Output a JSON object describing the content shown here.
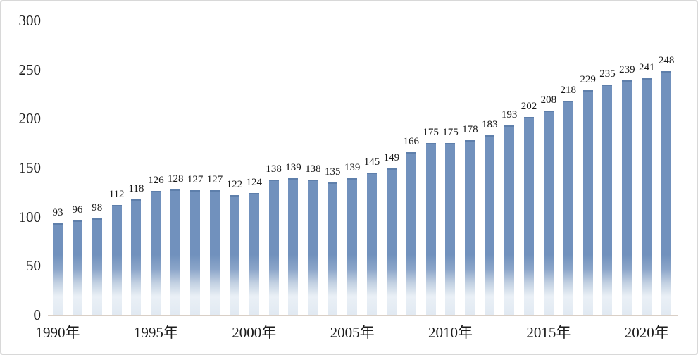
{
  "chart_data": {
    "type": "bar",
    "title": "",
    "xlabel": "",
    "ylabel": "",
    "categories": [
      1990,
      1991,
      1992,
      1993,
      1994,
      1995,
      1996,
      1997,
      1998,
      1999,
      2000,
      2001,
      2002,
      2003,
      2004,
      2005,
      2006,
      2007,
      2008,
      2009,
      2010,
      2011,
      2012,
      2013,
      2014,
      2015,
      2016,
      2017,
      2018,
      2019,
      2020,
      2021
    ],
    "values": [
      93,
      96,
      98,
      112,
      118,
      126,
      128,
      127,
      127,
      122,
      124,
      138,
      139,
      138,
      135,
      139,
      145,
      149,
      166,
      175,
      175,
      178,
      183,
      193,
      202,
      208,
      218,
      229,
      235,
      239,
      241,
      248
    ],
    "data_labels_shown": true,
    "y_ticks": [
      0,
      50,
      100,
      150,
      200,
      250,
      300
    ],
    "ylim": [
      0,
      300
    ],
    "x_tick_labels": [
      "1990年",
      "1995年",
      "2000年",
      "2005年",
      "2010年",
      "2015年",
      "2020年"
    ],
    "x_tick_indices": [
      0,
      5,
      10,
      15,
      20,
      25,
      30
    ],
    "grid": false,
    "legend": "none",
    "colors": {
      "bar_solid": "#7191bd",
      "bar_top_edge": "#5e7fab",
      "bar_fade_mid": "#c3d1e2",
      "bar_fade_light": "#eaf0f6",
      "bar_fade_bottom": "#e1e9f2",
      "axis_line": "#d9cfc6",
      "text": "#1d1d1d",
      "frame_border": "#d8d8d8",
      "background": "#ffffff"
    }
  }
}
